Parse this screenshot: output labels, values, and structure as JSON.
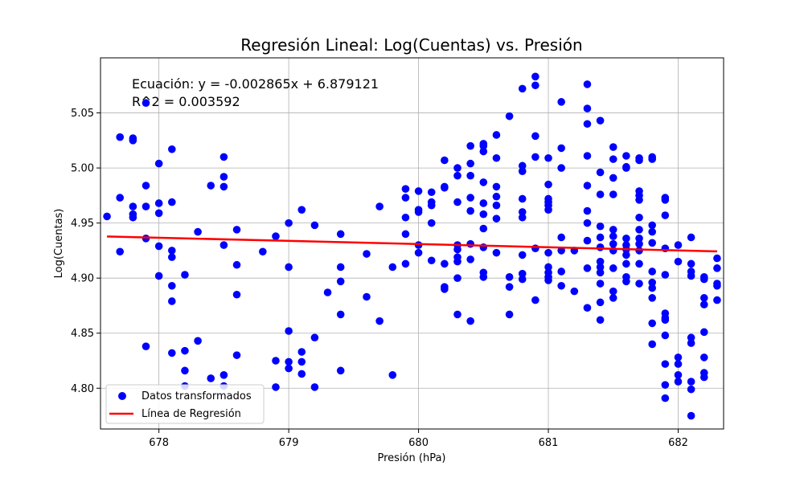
{
  "chart_data": {
    "type": "scatter",
    "title": "Regresión Lineal: Log(Cuentas) vs. Presión",
    "xlabel": "Presión (hPa)",
    "ylabel": "Log(Cuentas)",
    "xlim": [
      677.55,
      682.35
    ],
    "ylim": [
      4.763,
      5.1
    ],
    "x_ticks": [
      678,
      679,
      680,
      681,
      682
    ],
    "y_ticks": [
      4.8,
      4.85,
      4.9,
      4.95,
      5.0,
      5.05
    ],
    "x_tick_labels": [
      "678",
      "679",
      "680",
      "681",
      "682"
    ],
    "y_tick_labels": [
      "4.80",
      "4.85",
      "4.90",
      "4.95",
      "5.00",
      "5.05"
    ],
    "grid": true,
    "legend_position": "lower-left",
    "annotations": [
      "Ecuación: y = -0.002865x + 6.879121",
      "R^2 = 0.003592"
    ],
    "series": [
      {
        "name": "Datos transformados",
        "kind": "scatter",
        "color": "#0000ff",
        "points": [
          [
            677.6,
            4.956
          ],
          [
            677.7,
            4.973
          ],
          [
            677.7,
            5.028
          ],
          [
            677.7,
            4.924
          ],
          [
            677.8,
            5.027
          ],
          [
            677.8,
            5.025
          ],
          [
            677.8,
            4.965
          ],
          [
            677.8,
            4.958
          ],
          [
            677.8,
            4.955
          ],
          [
            677.9,
            5.059
          ],
          [
            677.9,
            4.984
          ],
          [
            677.9,
            4.965
          ],
          [
            677.9,
            4.936
          ],
          [
            677.9,
            4.838
          ],
          [
            678.0,
            5.004
          ],
          [
            678.0,
            4.968
          ],
          [
            678.0,
            4.959
          ],
          [
            678.0,
            4.929
          ],
          [
            678.0,
            4.902
          ],
          [
            678.1,
            5.017
          ],
          [
            678.1,
            4.969
          ],
          [
            678.1,
            4.925
          ],
          [
            678.1,
            4.919
          ],
          [
            678.1,
            4.893
          ],
          [
            678.1,
            4.879
          ],
          [
            678.1,
            4.832
          ],
          [
            678.2,
            4.903
          ],
          [
            678.2,
            4.834
          ],
          [
            678.2,
            4.816
          ],
          [
            678.2,
            4.802
          ],
          [
            678.3,
            4.942
          ],
          [
            678.3,
            4.843
          ],
          [
            678.4,
            4.984
          ],
          [
            678.4,
            4.809
          ],
          [
            678.5,
            5.01
          ],
          [
            678.5,
            4.992
          ],
          [
            678.5,
            4.983
          ],
          [
            678.5,
            4.93
          ],
          [
            678.5,
            4.812
          ],
          [
            678.5,
            4.802
          ],
          [
            678.6,
            4.944
          ],
          [
            678.6,
            4.912
          ],
          [
            678.6,
            4.885
          ],
          [
            678.6,
            4.83
          ],
          [
            678.8,
            4.924
          ],
          [
            678.9,
            4.938
          ],
          [
            678.9,
            4.825
          ],
          [
            678.9,
            4.801
          ],
          [
            679.0,
            4.95
          ],
          [
            679.0,
            4.91
          ],
          [
            679.0,
            4.852
          ],
          [
            679.0,
            4.824
          ],
          [
            679.0,
            4.818
          ],
          [
            679.1,
            4.962
          ],
          [
            679.1,
            4.833
          ],
          [
            679.1,
            4.824
          ],
          [
            679.1,
            4.813
          ],
          [
            679.2,
            4.948
          ],
          [
            679.2,
            4.846
          ],
          [
            679.2,
            4.801
          ],
          [
            679.3,
            4.887
          ],
          [
            679.4,
            4.94
          ],
          [
            679.4,
            4.91
          ],
          [
            679.4,
            4.897
          ],
          [
            679.4,
            4.867
          ],
          [
            679.4,
            4.816
          ],
          [
            679.6,
            4.922
          ],
          [
            679.6,
            4.883
          ],
          [
            679.7,
            4.965
          ],
          [
            679.7,
            4.861
          ],
          [
            679.8,
            4.91
          ],
          [
            679.8,
            4.812
          ],
          [
            679.9,
            4.981
          ],
          [
            679.9,
            4.973
          ],
          [
            679.9,
            4.955
          ],
          [
            679.9,
            4.94
          ],
          [
            679.9,
            4.913
          ],
          [
            680.0,
            4.979
          ],
          [
            680.0,
            4.962
          ],
          [
            680.0,
            4.96
          ],
          [
            680.0,
            4.93
          ],
          [
            680.0,
            4.923
          ],
          [
            680.1,
            4.978
          ],
          [
            680.1,
            4.969
          ],
          [
            680.1,
            4.966
          ],
          [
            680.1,
            4.95
          ],
          [
            680.1,
            4.916
          ],
          [
            680.2,
            5.007
          ],
          [
            680.2,
            4.983
          ],
          [
            680.2,
            4.982
          ],
          [
            680.2,
            4.913
          ],
          [
            680.2,
            4.892
          ],
          [
            680.2,
            4.89
          ],
          [
            680.3,
            5.0
          ],
          [
            680.3,
            4.993
          ],
          [
            680.3,
            4.969
          ],
          [
            680.3,
            4.93
          ],
          [
            680.3,
            4.926
          ],
          [
            680.3,
            4.919
          ],
          [
            680.3,
            4.915
          ],
          [
            680.3,
            4.9
          ],
          [
            680.3,
            4.867
          ],
          [
            680.4,
            5.02
          ],
          [
            680.4,
            5.004
          ],
          [
            680.4,
            4.993
          ],
          [
            680.4,
            4.973
          ],
          [
            680.4,
            4.961
          ],
          [
            680.4,
            4.931
          ],
          [
            680.4,
            4.917
          ],
          [
            680.4,
            4.861
          ],
          [
            680.5,
            5.022
          ],
          [
            680.5,
            5.02
          ],
          [
            680.5,
            5.015
          ],
          [
            680.5,
            4.987
          ],
          [
            680.5,
            4.968
          ],
          [
            680.5,
            4.958
          ],
          [
            680.5,
            4.945
          ],
          [
            680.5,
            4.928
          ],
          [
            680.5,
            4.905
          ],
          [
            680.5,
            4.901
          ],
          [
            680.6,
            5.03
          ],
          [
            680.6,
            5.009
          ],
          [
            680.6,
            4.983
          ],
          [
            680.6,
            4.974
          ],
          [
            680.6,
            4.966
          ],
          [
            680.6,
            4.954
          ],
          [
            680.6,
            4.923
          ],
          [
            680.7,
            5.047
          ],
          [
            680.7,
            4.901
          ],
          [
            680.7,
            4.892
          ],
          [
            680.7,
            4.867
          ],
          [
            680.8,
            5.072
          ],
          [
            680.8,
            5.002
          ],
          [
            680.8,
            4.997
          ],
          [
            680.8,
            4.972
          ],
          [
            680.8,
            4.96
          ],
          [
            680.8,
            4.955
          ],
          [
            680.8,
            4.921
          ],
          [
            680.8,
            4.904
          ],
          [
            680.8,
            4.899
          ],
          [
            680.9,
            5.083
          ],
          [
            680.9,
            5.075
          ],
          [
            680.9,
            5.029
          ],
          [
            680.9,
            5.01
          ],
          [
            680.9,
            4.927
          ],
          [
            680.9,
            4.88
          ],
          [
            681.0,
            5.009
          ],
          [
            681.0,
            4.985
          ],
          [
            681.0,
            4.972
          ],
          [
            681.0,
            4.969
          ],
          [
            681.0,
            4.966
          ],
          [
            681.0,
            4.962
          ],
          [
            681.0,
            4.923
          ],
          [
            681.0,
            4.91
          ],
          [
            681.0,
            4.905
          ],
          [
            681.0,
            4.901
          ],
          [
            681.0,
            4.898
          ],
          [
            681.1,
            5.06
          ],
          [
            681.1,
            5.018
          ],
          [
            681.1,
            5.0
          ],
          [
            681.1,
            4.937
          ],
          [
            681.1,
            4.925
          ],
          [
            681.1,
            4.906
          ],
          [
            681.1,
            4.893
          ],
          [
            681.2,
            4.925
          ],
          [
            681.2,
            4.888
          ],
          [
            681.3,
            5.076
          ],
          [
            681.3,
            5.054
          ],
          [
            681.3,
            5.04
          ],
          [
            681.3,
            5.011
          ],
          [
            681.3,
            4.984
          ],
          [
            681.3,
            4.961
          ],
          [
            681.3,
            4.95
          ],
          [
            681.3,
            4.934
          ],
          [
            681.3,
            4.909
          ],
          [
            681.3,
            4.873
          ],
          [
            681.4,
            5.043
          ],
          [
            681.4,
            4.996
          ],
          [
            681.4,
            4.976
          ],
          [
            681.4,
            4.947
          ],
          [
            681.4,
            4.937
          ],
          [
            681.4,
            4.928
          ],
          [
            681.4,
            4.915
          ],
          [
            681.4,
            4.91
          ],
          [
            681.4,
            4.905
          ],
          [
            681.4,
            4.895
          ],
          [
            681.4,
            4.878
          ],
          [
            681.4,
            4.862
          ],
          [
            681.5,
            5.019
          ],
          [
            681.5,
            5.008
          ],
          [
            681.5,
            4.991
          ],
          [
            681.5,
            4.976
          ],
          [
            681.5,
            4.944
          ],
          [
            681.5,
            4.938
          ],
          [
            681.5,
            4.931
          ],
          [
            681.5,
            4.925
          ],
          [
            681.5,
            4.909
          ],
          [
            681.5,
            4.888
          ],
          [
            681.5,
            4.882
          ],
          [
            681.6,
            5.011
          ],
          [
            681.6,
            5.001
          ],
          [
            681.6,
            5.0
          ],
          [
            681.6,
            4.936
          ],
          [
            681.6,
            4.93
          ],
          [
            681.6,
            4.926
          ],
          [
            681.6,
            4.921
          ],
          [
            681.6,
            4.913
          ],
          [
            681.6,
            4.901
          ],
          [
            681.6,
            4.897
          ],
          [
            681.7,
            5.009
          ],
          [
            681.7,
            5.007
          ],
          [
            681.7,
            4.979
          ],
          [
            681.7,
            4.975
          ],
          [
            681.7,
            4.971
          ],
          [
            681.7,
            4.955
          ],
          [
            681.7,
            4.944
          ],
          [
            681.7,
            4.936
          ],
          [
            681.7,
            4.931
          ],
          [
            681.7,
            4.925
          ],
          [
            681.7,
            4.913
          ],
          [
            681.7,
            4.895
          ],
          [
            681.8,
            5.01
          ],
          [
            681.8,
            5.008
          ],
          [
            681.8,
            4.948
          ],
          [
            681.8,
            4.942
          ],
          [
            681.8,
            4.932
          ],
          [
            681.8,
            4.906
          ],
          [
            681.8,
            4.896
          ],
          [
            681.8,
            4.891
          ],
          [
            681.8,
            4.882
          ],
          [
            681.8,
            4.859
          ],
          [
            681.8,
            4.84
          ],
          [
            681.9,
            4.973
          ],
          [
            681.9,
            4.971
          ],
          [
            681.9,
            4.957
          ],
          [
            681.9,
            4.927
          ],
          [
            681.9,
            4.903
          ],
          [
            681.9,
            4.868
          ],
          [
            681.9,
            4.864
          ],
          [
            681.9,
            4.862
          ],
          [
            681.9,
            4.848
          ],
          [
            681.9,
            4.822
          ],
          [
            681.9,
            4.803
          ],
          [
            681.9,
            4.791
          ],
          [
            682.0,
            4.93
          ],
          [
            682.0,
            4.915
          ],
          [
            682.0,
            4.828
          ],
          [
            682.0,
            4.822
          ],
          [
            682.0,
            4.812
          ],
          [
            682.0,
            4.806
          ],
          [
            682.1,
            4.937
          ],
          [
            682.1,
            4.913
          ],
          [
            682.1,
            4.906
          ],
          [
            682.1,
            4.902
          ],
          [
            682.1,
            4.846
          ],
          [
            682.1,
            4.841
          ],
          [
            682.1,
            4.806
          ],
          [
            682.1,
            4.799
          ],
          [
            682.1,
            4.775
          ],
          [
            682.2,
            4.901
          ],
          [
            682.2,
            4.899
          ],
          [
            682.2,
            4.882
          ],
          [
            682.2,
            4.876
          ],
          [
            682.2,
            4.851
          ],
          [
            682.2,
            4.828
          ],
          [
            682.2,
            4.814
          ],
          [
            682.2,
            4.81
          ],
          [
            682.3,
            4.918
          ],
          [
            682.3,
            4.909
          ],
          [
            682.3,
            4.895
          ],
          [
            682.3,
            4.893
          ],
          [
            682.3,
            4.88
          ]
        ]
      },
      {
        "name": "Línea de Regresión",
        "kind": "line",
        "color": "#ff0000",
        "x": [
          677.6,
          682.3
        ],
        "y": [
          4.9378,
          4.9243
        ]
      }
    ]
  }
}
